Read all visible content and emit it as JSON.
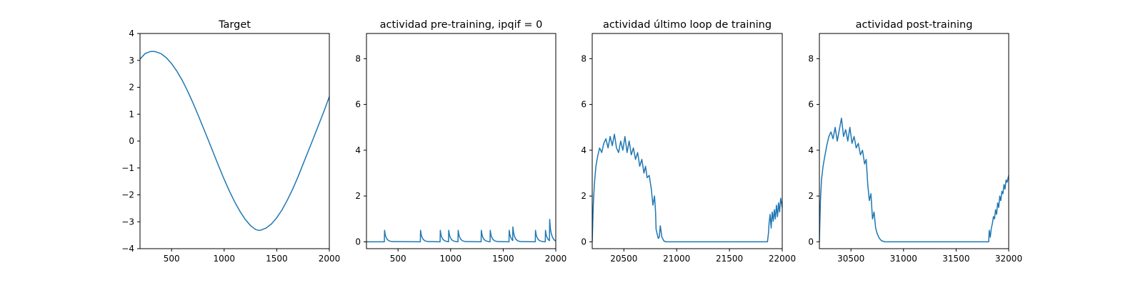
{
  "chart_data": [
    {
      "type": "line",
      "title": "Target",
      "xlabel": "",
      "ylabel": "",
      "xlim": [
        200,
        2000
      ],
      "ylim": [
        -4,
        4
      ],
      "xticks": [
        500,
        1000,
        1500,
        2000
      ],
      "yticks": [
        -4,
        -3,
        -2,
        -1,
        0,
        1,
        2,
        3,
        4
      ],
      "ytick_labels": [
        "−4",
        "−3",
        "−2",
        "−1",
        "0",
        "1",
        "2",
        "3",
        "4"
      ],
      "grid": false,
      "series": [
        {
          "color": "#1f77b4",
          "x": [
            200,
            250,
            300,
            330,
            350,
            400,
            450,
            500,
            550,
            600,
            650,
            700,
            750,
            800,
            850,
            900,
            950,
            1000,
            1050,
            1100,
            1150,
            1200,
            1250,
            1300,
            1330,
            1350,
            1400,
            1450,
            1500,
            1550,
            1600,
            1650,
            1700,
            1750,
            1800,
            1850,
            1900,
            1950,
            2000
          ],
          "y": [
            3.05,
            3.26,
            3.33,
            3.33,
            3.32,
            3.25,
            3.1,
            2.88,
            2.6,
            2.27,
            1.88,
            1.45,
            0.99,
            0.51,
            0.03,
            -0.46,
            -0.95,
            -1.42,
            -1.86,
            -2.26,
            -2.61,
            -2.91,
            -3.14,
            -3.29,
            -3.32,
            -3.31,
            -3.23,
            -3.08,
            -2.85,
            -2.56,
            -2.2,
            -1.8,
            -1.35,
            -0.86,
            -0.37,
            0.12,
            0.62,
            1.12,
            1.65
          ]
        }
      ]
    },
    {
      "type": "line",
      "title": "actividad pre-training, ipqif = 0",
      "xlabel": "",
      "ylabel": "",
      "xlim": [
        200,
        2000
      ],
      "ylim": [
        -0.3,
        9.1
      ],
      "xticks": [
        500,
        1000,
        1500,
        2000
      ],
      "yticks": [
        0,
        2,
        4,
        6,
        8
      ],
      "grid": false,
      "series": [
        {
          "color": "#1f77b4",
          "x": [
            200,
            370,
            372,
            378,
            386,
            398,
            415,
            440,
            712,
            714,
            720,
            728,
            740,
            757,
            782,
            900,
            902,
            908,
            916,
            928,
            945,
            970,
            980,
            982,
            988,
            996,
            1008,
            1025,
            1050,
            1070,
            1072,
            1078,
            1086,
            1098,
            1115,
            1140,
            1290,
            1292,
            1298,
            1306,
            1318,
            1335,
            1360,
            1375,
            1377,
            1383,
            1391,
            1403,
            1420,
            1445,
            1555,
            1557,
            1563,
            1571,
            1583,
            1590,
            1592,
            1598,
            1606,
            1618,
            1635,
            1660,
            1805,
            1807,
            1813,
            1821,
            1833,
            1850,
            1875,
            1900,
            1902,
            1908,
            1916,
            1928,
            1940,
            1942,
            1948,
            1956,
            1968,
            1985,
            2000
          ],
          "y": [
            0,
            0,
            0.5,
            0.32,
            0.2,
            0.1,
            0.04,
            0.01,
            0,
            0.5,
            0.32,
            0.2,
            0.1,
            0.04,
            0.01,
            0,
            0.5,
            0.32,
            0.2,
            0.1,
            0.04,
            0.01,
            0,
            0.5,
            0.32,
            0.2,
            0.1,
            0.04,
            0.01,
            0,
            0.5,
            0.32,
            0.2,
            0.1,
            0.04,
            0.01,
            0,
            0.5,
            0.32,
            0.2,
            0.1,
            0.04,
            0.01,
            0,
            0.5,
            0.32,
            0.2,
            0.1,
            0.04,
            0.01,
            0,
            0.5,
            0.32,
            0.2,
            0.1,
            0.05,
            0.65,
            0.42,
            0.26,
            0.13,
            0.05,
            0.01,
            0,
            0.5,
            0.32,
            0.2,
            0.1,
            0.04,
            0.01,
            0,
            0.5,
            0.32,
            0.2,
            0.1,
            0.05,
            0.98,
            0.6,
            0.38,
            0.2,
            0.08,
            0.04
          ]
        }
      ]
    },
    {
      "type": "line",
      "title": "actividad último loop de training",
      "xlabel": "",
      "ylabel": "",
      "xlim": [
        20200,
        22000
      ],
      "ylim": [
        -0.3,
        9.1
      ],
      "xticks": [
        20500,
        21000,
        21500,
        22000
      ],
      "yticks": [
        0,
        2,
        4,
        6,
        8
      ],
      "grid": false,
      "series": [
        {
          "color": "#1f77b4",
          "x": [
            20200,
            20210,
            20220,
            20235,
            20250,
            20270,
            20290,
            20310,
            20330,
            20350,
            20370,
            20390,
            20410,
            20430,
            20450,
            20470,
            20490,
            20510,
            20530,
            20550,
            20570,
            20590,
            20610,
            20630,
            20650,
            20670,
            20690,
            20705,
            20720,
            20740,
            20760,
            20775,
            20790,
            20800,
            20805,
            20815,
            20825,
            20835,
            20845,
            20860,
            20880,
            20900,
            21000,
            21500,
            21860,
            21870,
            21875,
            21885,
            21895,
            21905,
            21915,
            21925,
            21935,
            21945,
            21955,
            21965,
            21975,
            21985,
            22000
          ],
          "y": [
            0,
            1.6,
            2.5,
            3.3,
            3.7,
            4.1,
            3.9,
            4.3,
            4.5,
            4.1,
            4.6,
            4.2,
            4.7,
            4.1,
            3.9,
            4.4,
            4.0,
            4.6,
            3.9,
            4.4,
            3.8,
            4.1,
            3.6,
            3.9,
            3.3,
            3.6,
            3.0,
            3.3,
            2.8,
            2.9,
            2.3,
            1.6,
            2.0,
            1.3,
            0.55,
            0.35,
            0.15,
            0.2,
            0.7,
            0.2,
            0.03,
            0.0,
            0.0,
            0.0,
            0.0,
            0.4,
            0.8,
            1.2,
            0.6,
            1.3,
            0.9,
            1.4,
            1.0,
            1.6,
            1.1,
            1.7,
            1.3,
            1.9,
            1.5
          ]
        }
      ]
    },
    {
      "type": "line",
      "title": "actividad post-training",
      "xlabel": "",
      "ylabel": "",
      "xlim": [
        30200,
        32000
      ],
      "ylim": [
        -0.3,
        9.1
      ],
      "xticks": [
        30500,
        31000,
        31500,
        32000
      ],
      "yticks": [
        0,
        2,
        4,
        6,
        8
      ],
      "grid": false,
      "series": [
        {
          "color": "#1f77b4",
          "x": [
            30200,
            30210,
            30220,
            30235,
            30250,
            30270,
            30290,
            30310,
            30330,
            30350,
            30370,
            30390,
            30410,
            30430,
            30450,
            30470,
            30490,
            30510,
            30530,
            30550,
            30570,
            30590,
            30610,
            30630,
            30645,
            30660,
            30675,
            30690,
            30705,
            30720,
            30735,
            30750,
            30770,
            30790,
            30820,
            30900,
            31000,
            31500,
            31810,
            31815,
            31825,
            31835,
            31845,
            31855,
            31865,
            31875,
            31885,
            31895,
            31905,
            31915,
            31925,
            31935,
            31945,
            31955,
            31965,
            31975,
            31985,
            32000
          ],
          "y": [
            0,
            1.8,
            2.7,
            3.3,
            3.7,
            4.2,
            4.6,
            4.8,
            4.5,
            5.0,
            4.4,
            4.9,
            5.4,
            4.6,
            4.9,
            4.4,
            5.0,
            4.3,
            4.6,
            4.1,
            4.3,
            3.8,
            4.0,
            3.4,
            3.6,
            2.5,
            1.8,
            2.1,
            1.0,
            1.3,
            0.6,
            0.35,
            0.15,
            0.05,
            0.0,
            0.0,
            0.0,
            0.0,
            0.0,
            0.5,
            0.2,
            0.6,
            0.8,
            1.1,
            1.0,
            1.4,
            1.2,
            1.7,
            1.5,
            2.0,
            1.8,
            2.2,
            2.1,
            2.5,
            2.3,
            2.7,
            2.6,
            2.9
          ]
        }
      ]
    }
  ]
}
